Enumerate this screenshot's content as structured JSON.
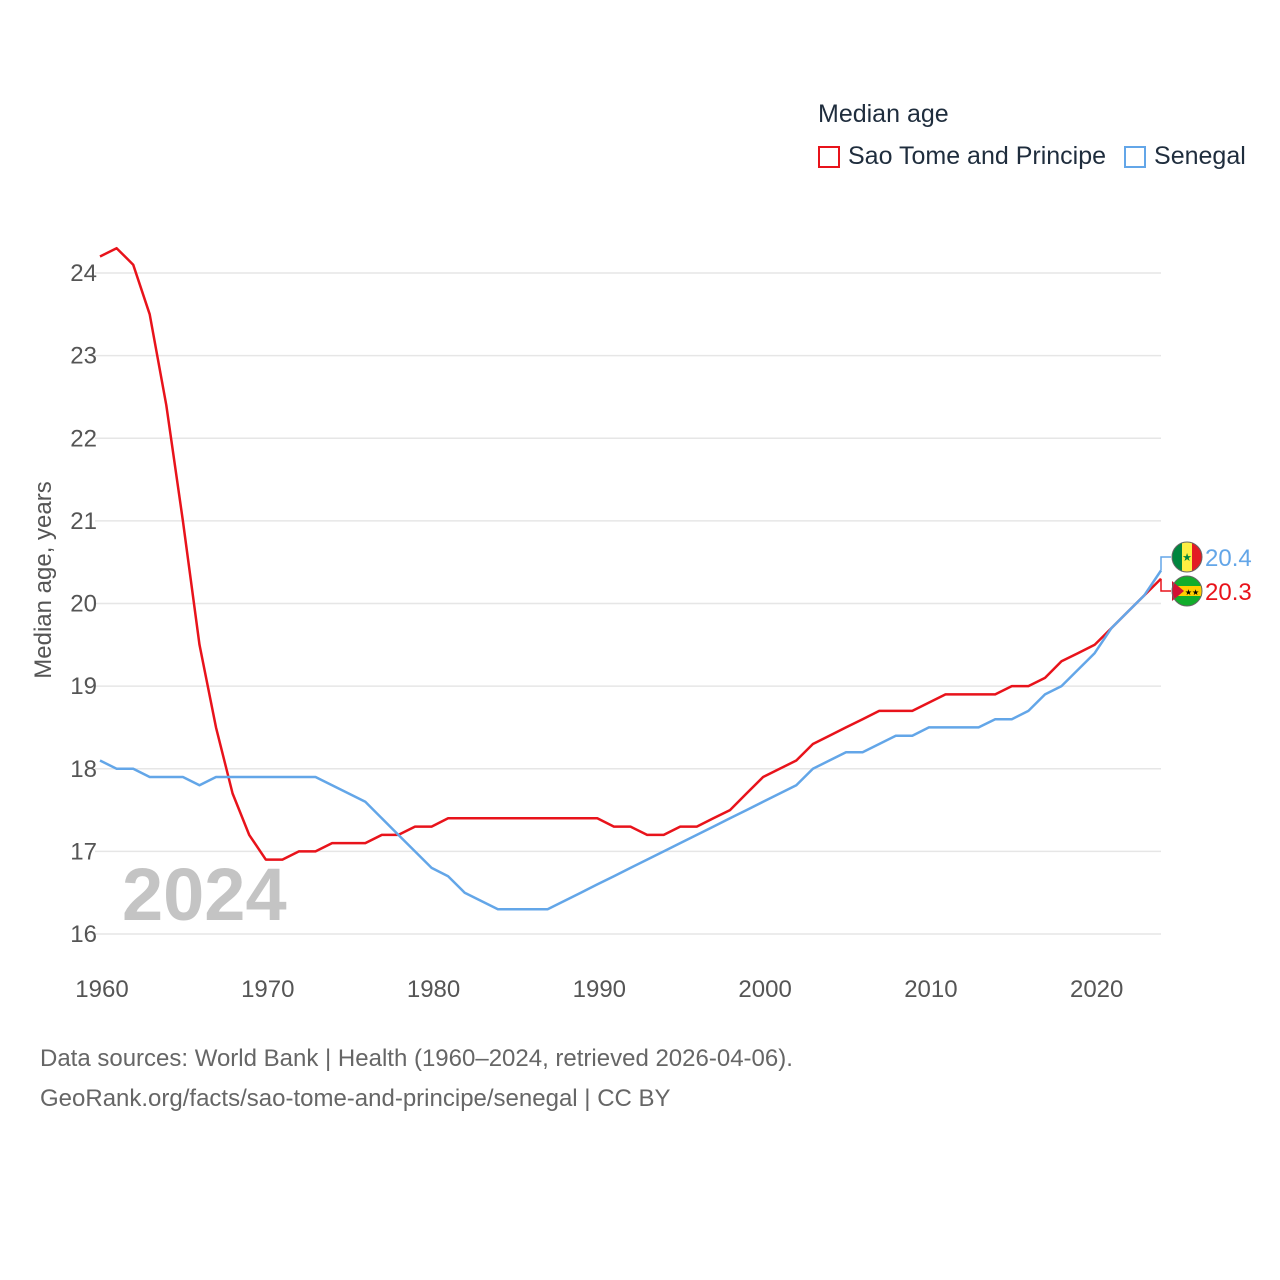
{
  "legend": {
    "title": "Median age",
    "items": [
      {
        "label": "Sao Tome and Principe",
        "color": "#e8131b"
      },
      {
        "label": "Senegal",
        "color": "#63a6e8"
      }
    ]
  },
  "footer": {
    "line1": "Data sources: World Bank | Health (1960–2024, retrieved 2026-04-06).",
    "line2": "GeoRank.org/facts/sao-tome-and-principe/senegal | CC BY"
  },
  "chart_data": {
    "type": "line",
    "title": "Median age",
    "ylabel": "Median age, years",
    "xlabel": "",
    "year_watermark": "2024",
    "xlim": [
      1960,
      2024
    ],
    "ylim": [
      16,
      24
    ],
    "x_ticks": [
      1960,
      1970,
      1980,
      1990,
      2000,
      2010,
      2020
    ],
    "y_ticks": [
      16,
      17,
      18,
      19,
      20,
      21,
      22,
      23,
      24
    ],
    "grid": true,
    "x": [
      1960,
      1961,
      1962,
      1963,
      1964,
      1965,
      1966,
      1967,
      1968,
      1969,
      1970,
      1971,
      1972,
      1973,
      1974,
      1975,
      1976,
      1977,
      1978,
      1979,
      1980,
      1981,
      1982,
      1983,
      1984,
      1985,
      1986,
      1987,
      1988,
      1989,
      1990,
      1991,
      1992,
      1993,
      1994,
      1995,
      1996,
      1997,
      1998,
      1999,
      2000,
      2001,
      2002,
      2003,
      2004,
      2005,
      2006,
      2007,
      2008,
      2009,
      2010,
      2011,
      2012,
      2013,
      2014,
      2015,
      2016,
      2017,
      2018,
      2019,
      2020,
      2021,
      2022,
      2023,
      2024
    ],
    "series": [
      {
        "name": "Sao Tome and Principe",
        "color": "#e8131b",
        "end_label": "20.3",
        "values": [
          24.2,
          24.3,
          24.1,
          23.5,
          22.4,
          21.0,
          19.5,
          18.5,
          17.7,
          17.2,
          16.9,
          16.9,
          17.0,
          17.0,
          17.1,
          17.1,
          17.1,
          17.2,
          17.2,
          17.3,
          17.3,
          17.4,
          17.4,
          17.4,
          17.4,
          17.4,
          17.4,
          17.4,
          17.4,
          17.4,
          17.4,
          17.3,
          17.3,
          17.2,
          17.2,
          17.3,
          17.3,
          17.4,
          17.5,
          17.7,
          17.9,
          18.0,
          18.1,
          18.3,
          18.4,
          18.5,
          18.6,
          18.7,
          18.7,
          18.7,
          18.8,
          18.9,
          18.9,
          18.9,
          18.9,
          19.0,
          19.0,
          19.1,
          19.3,
          19.4,
          19.5,
          19.7,
          19.9,
          20.1,
          20.3
        ]
      },
      {
        "name": "Senegal",
        "color": "#63a6e8",
        "end_label": "20.4",
        "values": [
          18.1,
          18.0,
          18.0,
          17.9,
          17.9,
          17.9,
          17.8,
          17.9,
          17.9,
          17.9,
          17.9,
          17.9,
          17.9,
          17.9,
          17.8,
          17.7,
          17.6,
          17.4,
          17.2,
          17.0,
          16.8,
          16.7,
          16.5,
          16.4,
          16.3,
          16.3,
          16.3,
          16.3,
          16.4,
          16.5,
          16.6,
          16.7,
          16.8,
          16.9,
          17.0,
          17.1,
          17.2,
          17.3,
          17.4,
          17.5,
          17.6,
          17.7,
          17.8,
          18.0,
          18.1,
          18.2,
          18.2,
          18.3,
          18.4,
          18.4,
          18.5,
          18.5,
          18.5,
          18.5,
          18.6,
          18.6,
          18.7,
          18.9,
          19.0,
          19.2,
          19.4,
          19.7,
          19.9,
          20.1,
          20.4
        ]
      }
    ]
  }
}
